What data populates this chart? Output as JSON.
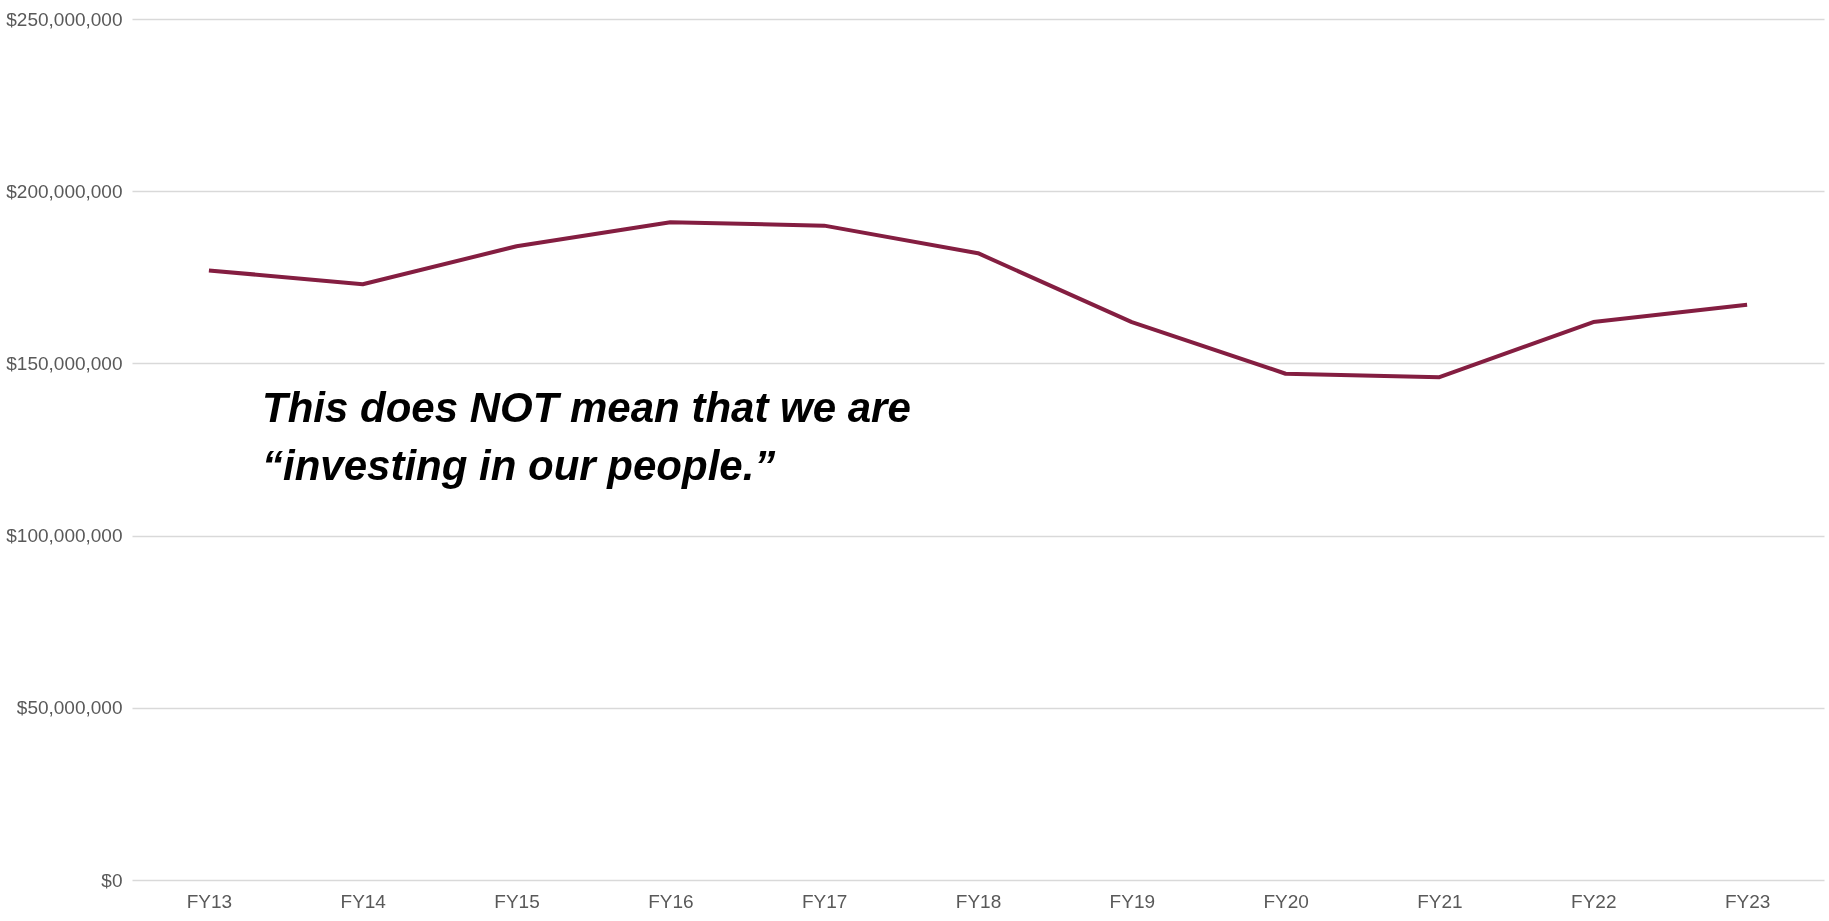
{
  "chart_data": {
    "type": "line",
    "categories": [
      "FY13",
      "FY14",
      "FY15",
      "FY16",
      "FY17",
      "FY18",
      "FY19",
      "FY20",
      "FY21",
      "FY22",
      "FY23"
    ],
    "series": [
      {
        "color": "#841e41",
        "values": [
          177000000,
          173000000,
          184000000,
          191000000,
          190000000,
          182000000,
          162000000,
          147000000,
          146000000,
          162000000,
          167000000
        ]
      }
    ],
    "ylim": [
      0,
      250000000
    ],
    "yticks": [
      {
        "value": 0,
        "label": "$0"
      },
      {
        "value": 50000000,
        "label": "$50,000,000"
      },
      {
        "value": 100000000,
        "label": "$100,000,000"
      },
      {
        "value": 150000000,
        "label": "$150,000,000"
      },
      {
        "value": 200000000,
        "label": "$200,000,000"
      },
      {
        "value": 250000000,
        "label": "$250,000,000"
      }
    ],
    "grid": "y",
    "legend": false,
    "marker": "none",
    "line_style": "solid",
    "annotations": [
      "This does NOT mean that we are\n“investing in our people.”"
    ]
  }
}
